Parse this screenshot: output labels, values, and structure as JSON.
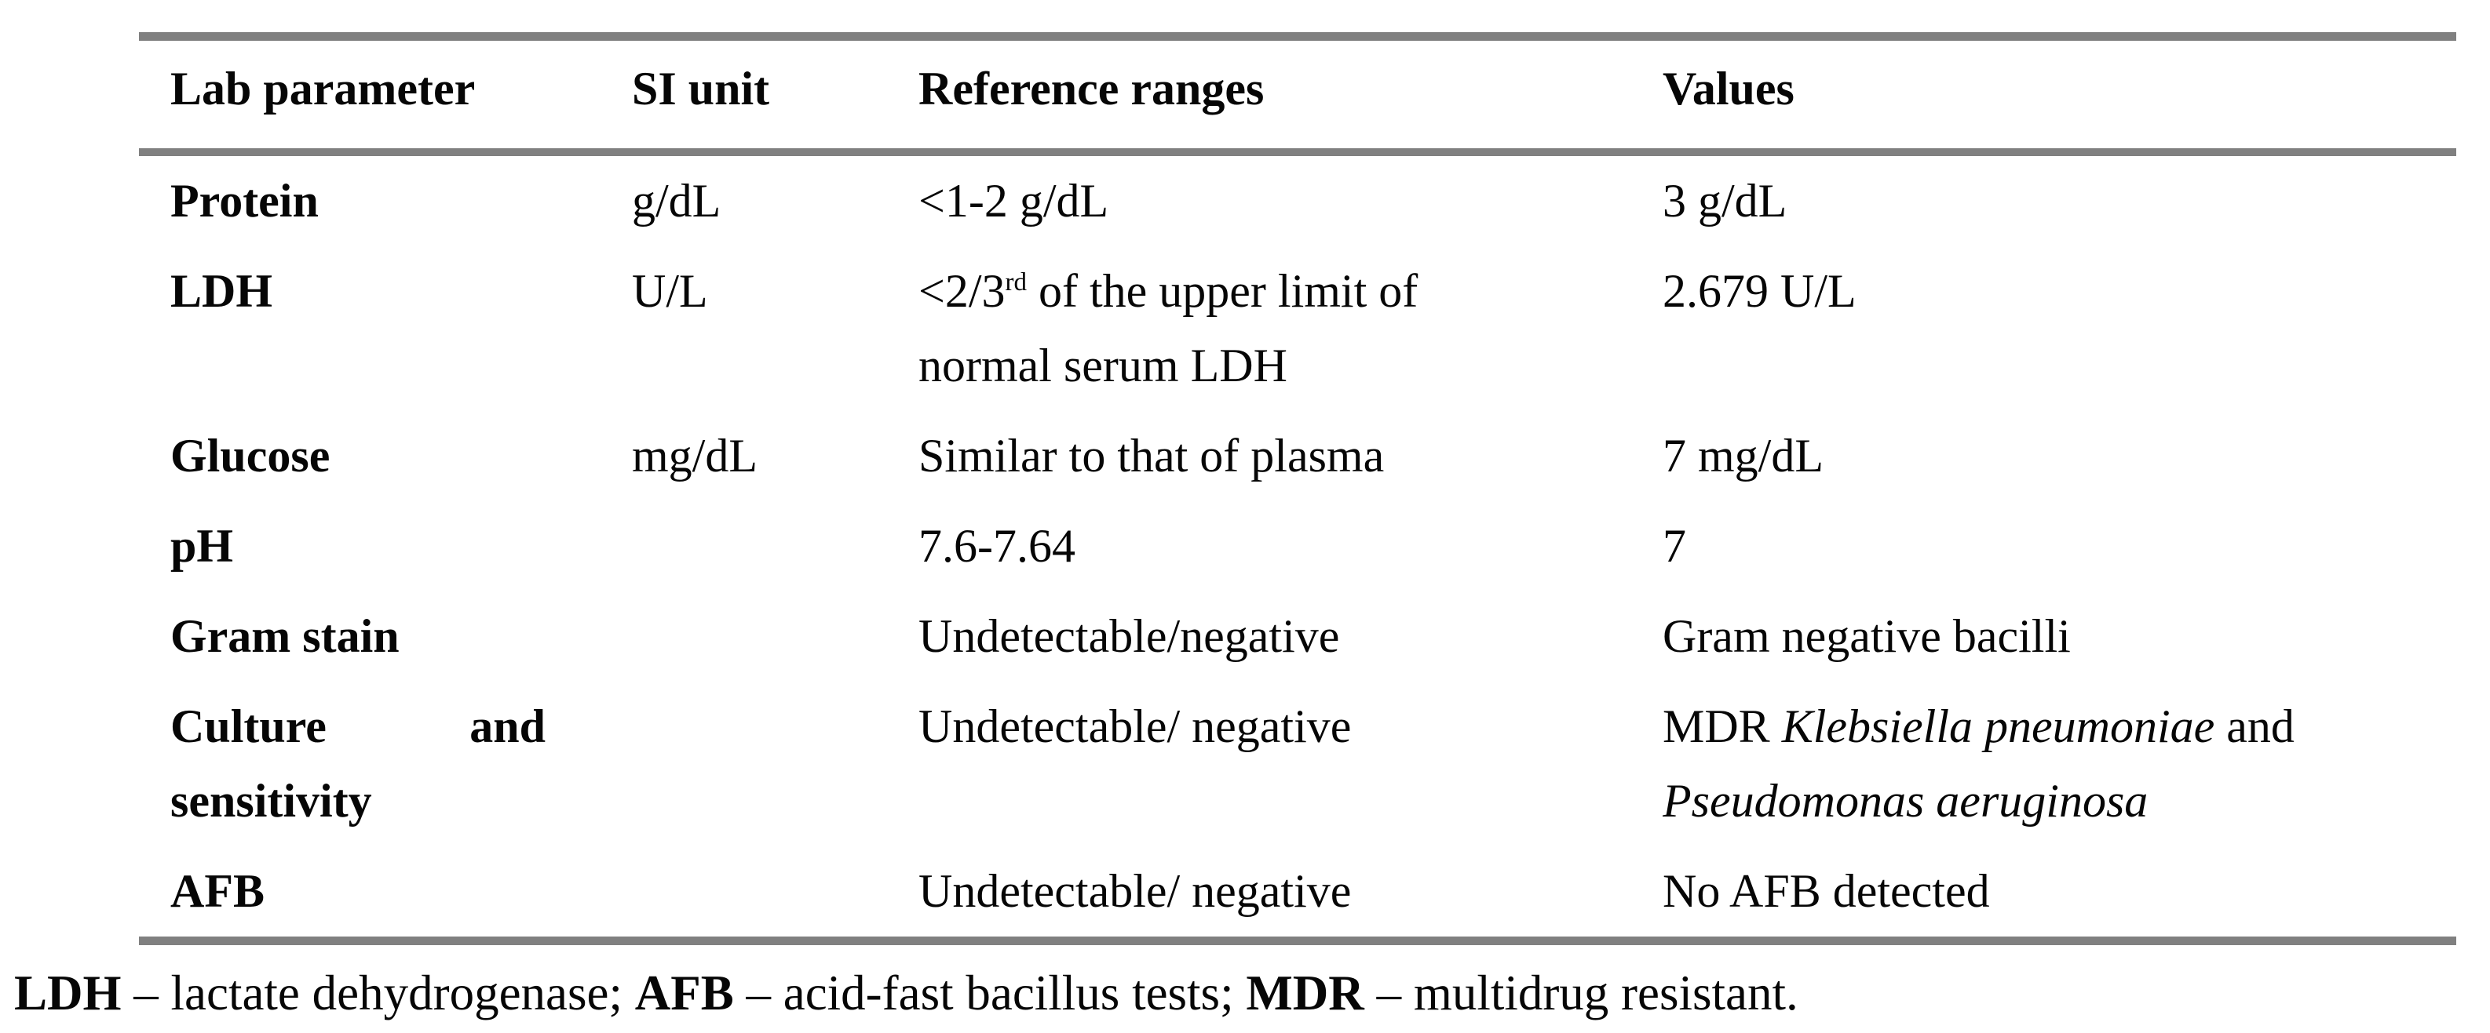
{
  "colors": {
    "rule": "#808080",
    "text": "#060606",
    "background": "#ffffff"
  },
  "table": {
    "columns": [
      "Lab parameter",
      "SI unit",
      "Reference ranges",
      "Values"
    ],
    "rows": [
      {
        "parameter": "Protein",
        "si_unit": "g/dL",
        "reference": "<1-2 g/dL",
        "value": "3 g/dL"
      },
      {
        "parameter": "LDH",
        "si_unit": "U/L",
        "reference_pre": "<2/3",
        "reference_sup": "rd",
        "reference_rest": " of the upper limit of normal serum LDH",
        "value": "2.679 U/L"
      },
      {
        "parameter": "Glucose",
        "si_unit": "mg/dL",
        "reference": "Similar to that of plasma",
        "value": "7 mg/dL"
      },
      {
        "parameter": "pH",
        "si_unit": "",
        "reference": "7.6-7.64",
        "value": "7"
      },
      {
        "parameter": "Gram stain",
        "si_unit": "",
        "reference": "Undetectable/negative",
        "value": "Gram negative bacilli"
      },
      {
        "parameter": "Culture and sensitivity",
        "si_unit": "",
        "reference": "Undetectable/ negative",
        "value_pre": "MDR ",
        "value_species1": "Klebsiella pneumoniae",
        "value_mid": " and ",
        "value_species2": "Pseudomonas aeruginosa"
      },
      {
        "parameter": "AFB",
        "si_unit": "",
        "reference": "Undetectable/ negative",
        "value": "No AFB detected"
      }
    ]
  },
  "footnote": {
    "abbr_ldh": "LDH",
    "text_ldh": " – lactate dehydrogenase; ",
    "abbr_afb": "AFB",
    "text_afb": " – acid-fast bacillus tests; ",
    "abbr_mdr": "MDR",
    "text_mdr": " – multidrug resistant."
  }
}
